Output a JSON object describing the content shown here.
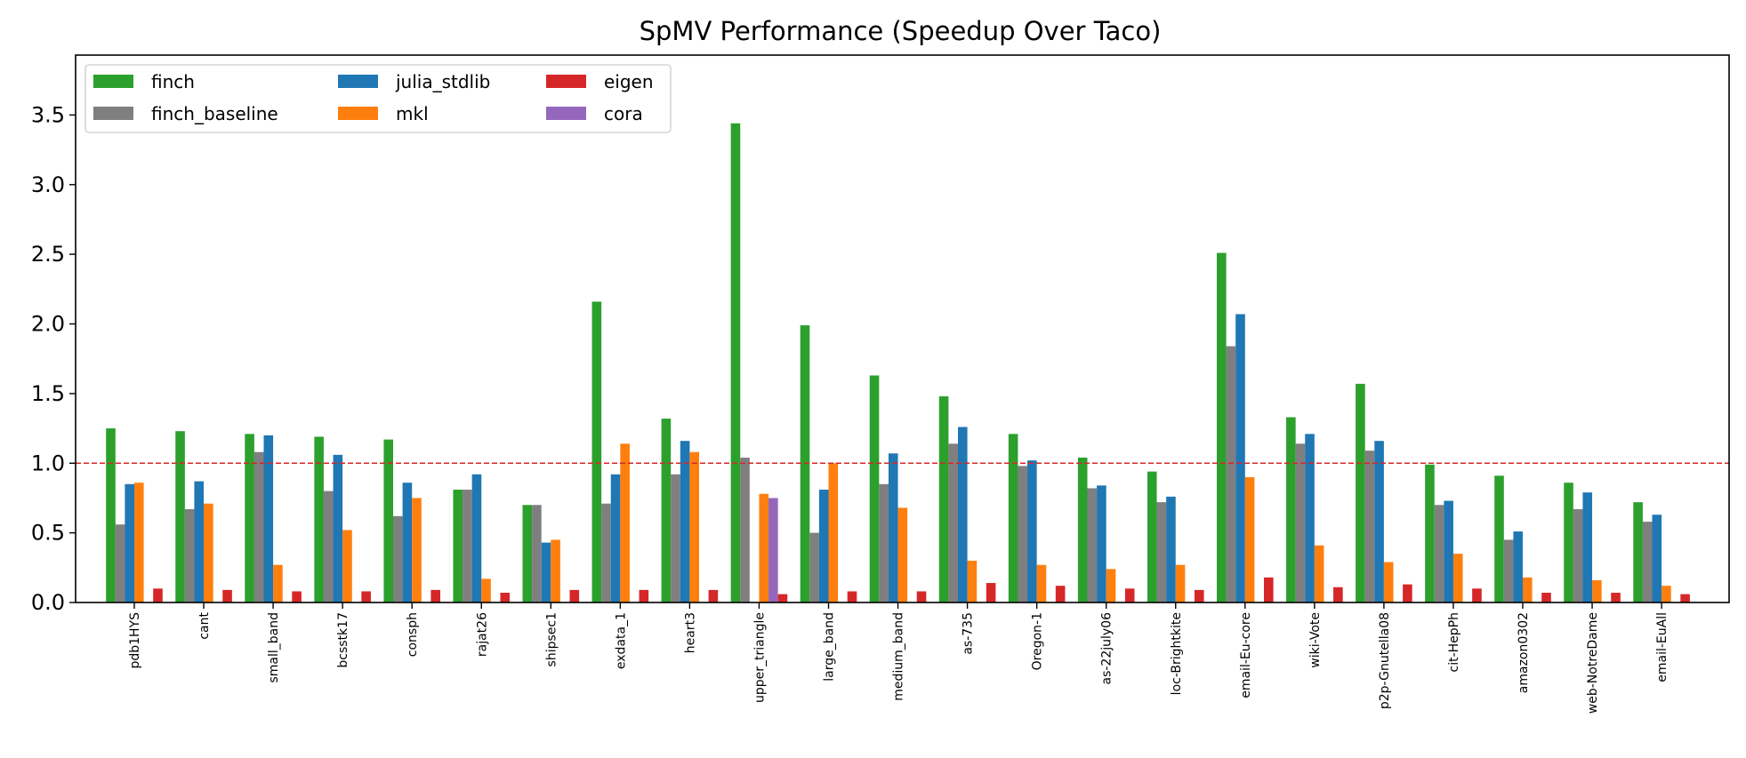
{
  "chart_data": {
    "type": "bar",
    "title": "SpMV Performance (Speedup Over Taco)",
    "xlabel": "",
    "ylabel": "",
    "ylim": [
      0,
      3.93
    ],
    "yticks": [
      "0.0",
      "0.5",
      "1.0",
      "1.5",
      "2.0",
      "2.5",
      "3.0",
      "3.5"
    ],
    "reference_line": {
      "value": 1.0,
      "color": "#d62728",
      "style": "dashed"
    },
    "grid": false,
    "legend": {
      "placement": "top-left",
      "columns": 3
    },
    "categories": [
      "pdb1HYS",
      "cant",
      "small_band",
      "bcsstk17",
      "consph",
      "rajat26",
      "shipsec1",
      "exdata_1",
      "heart3",
      "upper_triangle",
      "large_band",
      "medium_band",
      "as-735",
      "Oregon-1",
      "as-22july06",
      "loc-Brightkite",
      "email-Eu-core",
      "wiki-Vote",
      "p2p-Gnutella08",
      "cit-HepPh",
      "amazon0302",
      "web-NotreDame",
      "email-EuAll"
    ],
    "series": [
      {
        "name": "finch",
        "color": "#2ca02c",
        "values": [
          1.25,
          1.23,
          1.21,
          1.19,
          1.17,
          0.81,
          0.7,
          2.16,
          1.32,
          3.44,
          1.99,
          1.63,
          1.48,
          1.21,
          1.04,
          0.94,
          2.51,
          1.33,
          1.57,
          0.99,
          0.91,
          0.86,
          0.72
        ]
      },
      {
        "name": "finch_baseline",
        "color": "#7f7f7f",
        "values": [
          0.56,
          0.67,
          1.08,
          0.8,
          0.62,
          0.81,
          0.7,
          0.71,
          0.92,
          1.04,
          0.5,
          0.85,
          1.14,
          0.98,
          0.82,
          0.72,
          1.84,
          1.14,
          1.09,
          0.7,
          0.45,
          0.67,
          0.58
        ]
      },
      {
        "name": "julia_stdlib",
        "color": "#1f77b4",
        "values": [
          0.85,
          0.87,
          1.2,
          1.06,
          0.86,
          0.92,
          0.43,
          0.92,
          1.16,
          0.0,
          0.81,
          1.07,
          1.26,
          1.02,
          0.84,
          0.76,
          2.07,
          1.21,
          1.16,
          0.73,
          0.51,
          0.79,
          0.63
        ]
      },
      {
        "name": "mkl",
        "color": "#ff7f0e",
        "values": [
          0.86,
          0.71,
          0.27,
          0.52,
          0.75,
          0.17,
          0.45,
          1.14,
          1.08,
          0.78,
          1.0,
          0.68,
          0.3,
          0.27,
          0.24,
          0.27,
          0.9,
          0.41,
          0.29,
          0.35,
          0.18,
          0.16,
          0.12
        ]
      },
      {
        "name": "cora",
        "color": "#9467bd",
        "values": [
          0,
          0,
          0,
          0,
          0,
          0,
          0,
          0,
          0,
          0.75,
          0,
          0,
          0,
          0,
          0,
          0,
          0,
          0,
          0,
          0,
          0,
          0,
          0
        ]
      },
      {
        "name": "eigen",
        "color": "#d62728",
        "values": [
          0.1,
          0.09,
          0.08,
          0.08,
          0.09,
          0.07,
          0.09,
          0.09,
          0.09,
          0.06,
          0.08,
          0.08,
          0.14,
          0.12,
          0.1,
          0.09,
          0.18,
          0.11,
          0.13,
          0.1,
          0.07,
          0.07,
          0.06
        ]
      }
    ],
    "legend_order": [
      "finch",
      "finch_baseline",
      "julia_stdlib",
      "mkl",
      "eigen",
      "cora"
    ]
  }
}
